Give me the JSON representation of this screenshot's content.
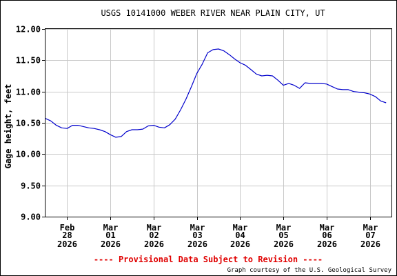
{
  "chart_data": {
    "type": "line",
    "title": "USGS 10141000 WEBER RIVER NEAR PLAIN CITY, UT",
    "ylabel": "Gage height, feet",
    "xlabel": "",
    "ylim": [
      9.0,
      12.0
    ],
    "yticks": [
      "12.00",
      "11.50",
      "11.00",
      "10.50",
      "10.00",
      "9.50",
      "9.00"
    ],
    "xlim": [
      "2026-02-27T12:00",
      "2026-03-07T12:00"
    ],
    "xticks": [
      {
        "month": "Feb",
        "day": "28",
        "year": "2026",
        "date": "2026-02-28"
      },
      {
        "month": "Mar",
        "day": "01",
        "year": "2026",
        "date": "2026-03-01"
      },
      {
        "month": "Mar",
        "day": "02",
        "year": "2026",
        "date": "2026-03-02"
      },
      {
        "month": "Mar",
        "day": "03",
        "year": "2026",
        "date": "2026-03-03"
      },
      {
        "month": "Mar",
        "day": "04",
        "year": "2026",
        "date": "2026-03-04"
      },
      {
        "month": "Mar",
        "day": "05",
        "year": "2026",
        "date": "2026-03-05"
      },
      {
        "month": "Mar",
        "day": "06",
        "year": "2026",
        "date": "2026-03-06"
      },
      {
        "month": "Mar",
        "day": "07",
        "year": "2026",
        "date": "2026-03-07"
      }
    ],
    "grid": true,
    "series": [
      {
        "color": "#0000cc",
        "x": [
          "2026-02-27T12:00",
          "2026-02-27T15:00",
          "2026-02-27T18:00",
          "2026-02-27T21:00",
          "2026-02-28T00:00",
          "2026-02-28T03:00",
          "2026-02-28T06:00",
          "2026-02-28T09:00",
          "2026-02-28T12:00",
          "2026-02-28T15:00",
          "2026-02-28T18:00",
          "2026-02-28T21:00",
          "2026-03-01T00:00",
          "2026-03-01T03:00",
          "2026-03-01T06:00",
          "2026-03-01T09:00",
          "2026-03-01T12:00",
          "2026-03-01T15:00",
          "2026-03-01T18:00",
          "2026-03-01T21:00",
          "2026-03-02T00:00",
          "2026-03-02T03:00",
          "2026-03-02T06:00",
          "2026-03-02T09:00",
          "2026-03-02T12:00",
          "2026-03-02T15:00",
          "2026-03-02T18:00",
          "2026-03-02T21:00",
          "2026-03-03T00:00",
          "2026-03-03T03:00",
          "2026-03-03T06:00",
          "2026-03-03T09:00",
          "2026-03-03T12:00",
          "2026-03-03T15:00",
          "2026-03-03T18:00",
          "2026-03-03T21:00",
          "2026-03-04T00:00",
          "2026-03-04T03:00",
          "2026-03-04T06:00",
          "2026-03-04T09:00",
          "2026-03-04T12:00",
          "2026-03-04T15:00",
          "2026-03-04T18:00",
          "2026-03-04T21:00",
          "2026-03-05T00:00",
          "2026-03-05T03:00",
          "2026-03-05T06:00",
          "2026-03-05T09:00",
          "2026-03-05T12:00",
          "2026-03-05T15:00",
          "2026-03-05T18:00",
          "2026-03-05T21:00",
          "2026-03-06T00:00",
          "2026-03-06T03:00",
          "2026-03-06T06:00",
          "2026-03-06T09:00",
          "2026-03-06T12:00",
          "2026-03-06T15:00",
          "2026-03-06T18:00",
          "2026-03-06T21:00",
          "2026-03-07T00:00",
          "2026-03-07T03:00",
          "2026-03-07T06:00",
          "2026-03-07T09:00"
        ],
        "y": [
          10.57,
          10.53,
          10.46,
          10.42,
          10.41,
          10.46,
          10.46,
          10.44,
          10.42,
          10.41,
          10.39,
          10.36,
          10.31,
          10.27,
          10.28,
          10.36,
          10.39,
          10.39,
          10.4,
          10.45,
          10.46,
          10.43,
          10.42,
          10.47,
          10.56,
          10.71,
          10.88,
          11.08,
          11.29,
          11.44,
          11.62,
          11.67,
          11.68,
          11.65,
          11.59,
          11.52,
          11.46,
          11.42,
          11.35,
          11.28,
          11.25,
          11.26,
          11.25,
          11.18,
          11.1,
          11.13,
          11.1,
          11.05,
          11.14,
          11.13,
          11.13,
          11.13,
          11.12,
          11.08,
          11.04,
          11.03,
          11.03,
          11.0,
          10.99,
          10.98,
          10.96,
          10.92,
          10.85,
          10.82
        ]
      }
    ],
    "footer_note": "---- Provisional Data Subject to Revision ----",
    "credit": "Graph courtesy of the U.S. Geological Survey"
  }
}
